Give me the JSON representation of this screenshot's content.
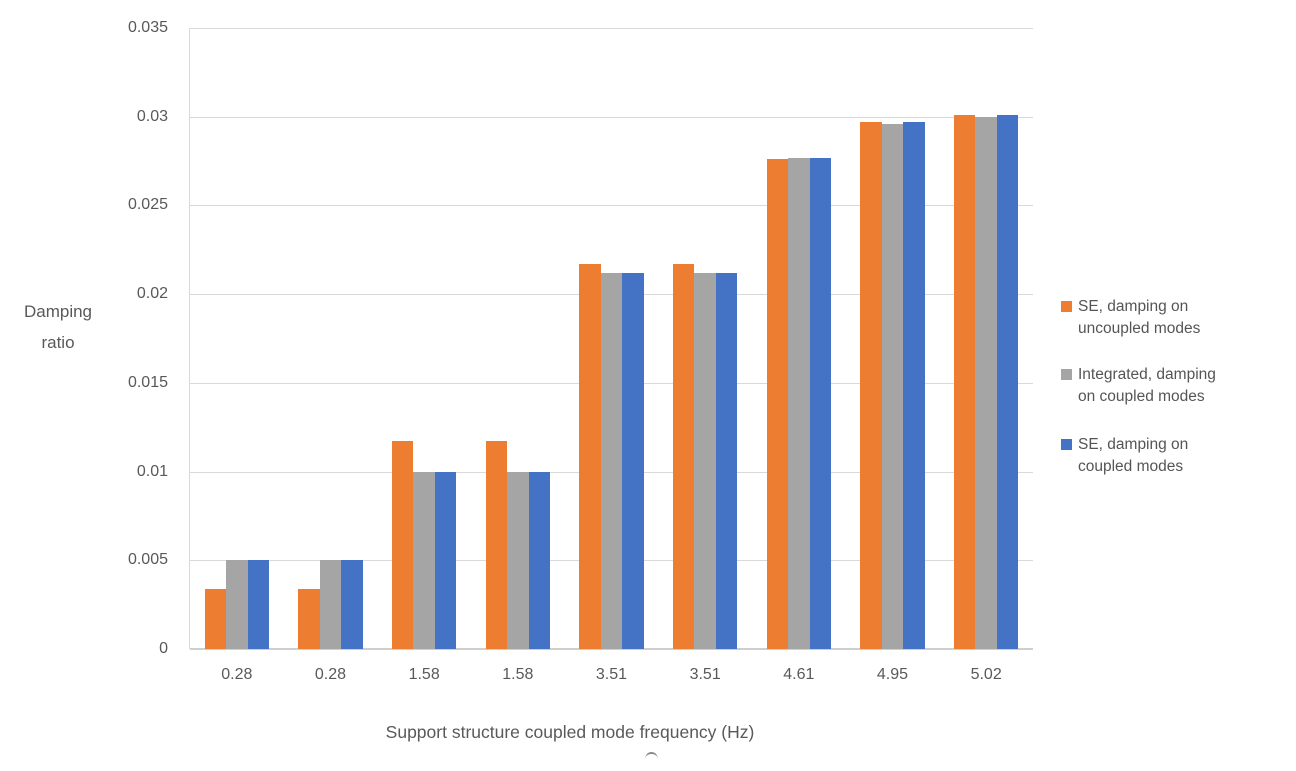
{
  "chart_data": {
    "type": "bar",
    "title": "",
    "xlabel": "Support structure coupled mode frequency (Hz)",
    "ylabel": "Damping ratio",
    "ylabel_lines": [
      "Damping",
      "ratio"
    ],
    "categories": [
      "0.28",
      "0.28",
      "1.58",
      "1.58",
      "3.51",
      "3.51",
      "4.61",
      "4.95",
      "5.02"
    ],
    "series": [
      {
        "name": "SE, damping on uncoupled modes",
        "name_lines": [
          "SE, damping on",
          "uncoupled modes"
        ],
        "color": "#ED7D31",
        "values": [
          0.0034,
          0.0034,
          0.0117,
          0.0117,
          0.0217,
          0.0217,
          0.0276,
          0.0297,
          0.0301
        ]
      },
      {
        "name": "Integrated, damping on coupled modes",
        "name_lines": [
          "Integrated, damping",
          "on coupled modes"
        ],
        "color": "#A5A5A5",
        "values": [
          0.005,
          0.005,
          0.01,
          0.01,
          0.0212,
          0.0212,
          0.0277,
          0.0296,
          0.03
        ]
      },
      {
        "name": "SE, damping on coupled modes",
        "name_lines": [
          "SE, damping on",
          "coupled modes"
        ],
        "color": "#4472C4",
        "values": [
          0.005,
          0.005,
          0.01,
          0.01,
          0.0212,
          0.0212,
          0.0277,
          0.0297,
          0.0301
        ]
      }
    ],
    "ylim": [
      0,
      0.035
    ],
    "ytick_step": 0.005,
    "yticks_top_to_bottom": [
      "0.035",
      "0.03",
      "0.025",
      "0.02",
      "0.015",
      "0.01",
      "0.005",
      "0"
    ],
    "grid": true,
    "legend_position": "right",
    "colors": {
      "gridline": "#D9D9D9",
      "axis_line": "#CFCFCF",
      "tick_text": "#595959",
      "legend_text": "#555555"
    }
  }
}
